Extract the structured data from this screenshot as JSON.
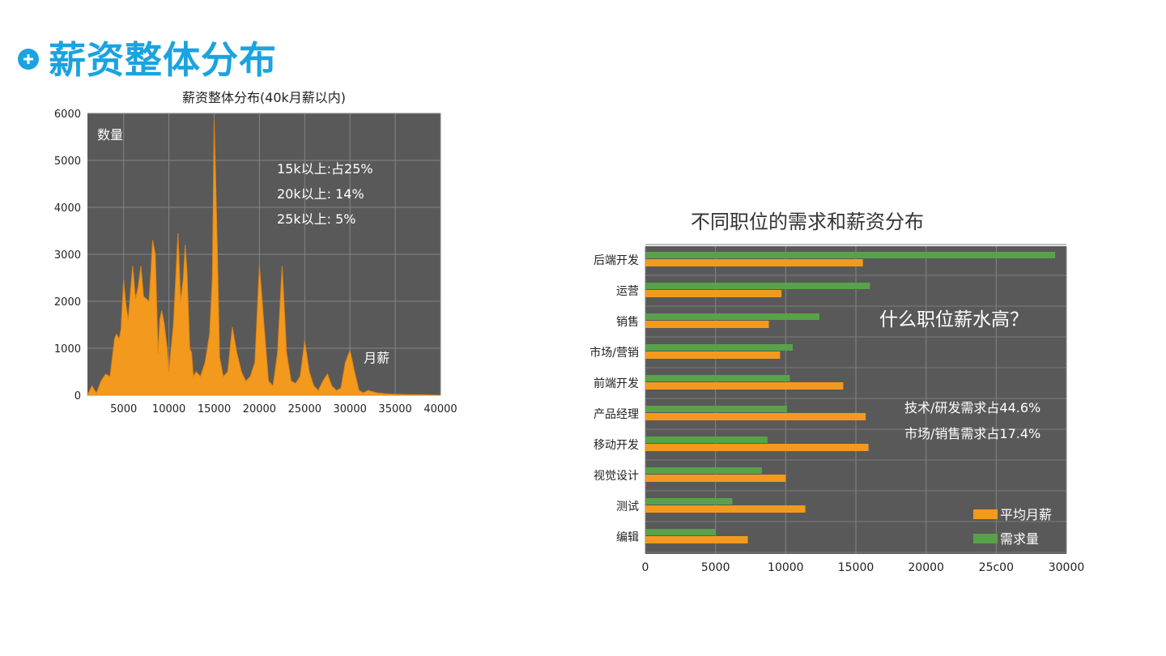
{
  "slide": {
    "title": "薪资整体分布",
    "icon": "plus-circle-icon",
    "accent_color": "#1aa3e0"
  },
  "chart_data": [
    {
      "type": "area",
      "title": "薪资整体分布(40k月薪以内)",
      "ylabel": "数量",
      "xlabel": "月薪",
      "xlim": [
        1000,
        40000
      ],
      "ylim": [
        0,
        6000
      ],
      "xticks": [
        5000,
        10000,
        15000,
        20000,
        25000,
        30000,
        35000,
        40000
      ],
      "yticks": [
        0,
        1000,
        2000,
        3000,
        4000,
        5000,
        6000
      ],
      "background": "#595959",
      "fill_color": "#f39a1e",
      "grid": true,
      "annotations": [
        "15k以上:占25%",
        "20k以上: 14%",
        "25k以上: 5%"
      ],
      "series": [
        {
          "x": [
            1000,
            1500,
            1800,
            2000,
            2500,
            3000,
            3500,
            4000,
            4200,
            4500,
            4700,
            5000,
            5200,
            5500,
            5800,
            6000,
            6300,
            6600,
            6900,
            7200,
            7500,
            7800,
            8000,
            8200,
            8500,
            8800,
            9000,
            9200,
            9500,
            9800,
            10000,
            10500,
            11000,
            11300,
            11600,
            11800,
            12000,
            12300,
            12500,
            12700,
            13000,
            13500,
            14000,
            14500,
            14800,
            15000,
            15300,
            15600,
            16000,
            16500,
            17000,
            17500,
            18000,
            18500,
            19000,
            19500,
            20000,
            20500,
            21000,
            21500,
            22000,
            22500,
            23000,
            23500,
            24000,
            24500,
            25000,
            25500,
            26000,
            26500,
            27000,
            27500,
            28000,
            28500,
            29000,
            29500,
            30000,
            30500,
            31000,
            31500,
            32000,
            33000,
            34000,
            35000,
            36000,
            37000,
            38000,
            39000,
            40000
          ],
          "values": [
            0,
            200,
            100,
            50,
            300,
            450,
            400,
            1200,
            1300,
            1200,
            1400,
            2450,
            2000,
            1600,
            2300,
            2750,
            2050,
            2300,
            2750,
            2100,
            2050,
            2000,
            2600,
            3300,
            3000,
            900,
            1600,
            1800,
            1500,
            1000,
            500,
            1500,
            3450,
            2000,
            2500,
            3200,
            2600,
            1000,
            900,
            400,
            500,
            400,
            700,
            1300,
            2500,
            5850,
            3500,
            800,
            400,
            500,
            1450,
            900,
            500,
            300,
            400,
            700,
            2750,
            1500,
            300,
            200,
            900,
            2750,
            900,
            300,
            250,
            400,
            1150,
            500,
            200,
            100,
            300,
            450,
            200,
            100,
            150,
            700,
            950,
            500,
            100,
            50,
            100,
            50,
            30,
            20,
            15,
            10,
            10,
            5,
            0
          ]
        }
      ]
    },
    {
      "type": "bar",
      "orientation": "horizontal",
      "title": "不同职位的需求和薪资分布",
      "categories": [
        "后端开发",
        "运营",
        "销售",
        "市场/营销",
        "前端开发",
        "产品经理",
        "移动开发",
        "视觉设计",
        "测试",
        "编辑"
      ],
      "xlim": [
        0,
        30000
      ],
      "xticks": [
        0,
        5000,
        10000,
        15000,
        20000,
        25000,
        30000
      ],
      "xtick_labels": [
        "0",
        "5000",
        "10000",
        "15000",
        "20000",
        "25c00",
        "30000"
      ],
      "background": "#595959",
      "grid": true,
      "annotations": {
        "question": "什么职位薪水高？",
        "notes": [
          "技术/研发需求占44.6%",
          "市场/销售需求占17.4%"
        ]
      },
      "legend_placement": "bottom-right",
      "series": [
        {
          "name": "需求量",
          "color": "#58a24a",
          "values": [
            29200,
            16000,
            12400,
            10500,
            10300,
            10100,
            8700,
            8300,
            6200,
            5000
          ]
        },
        {
          "name": "平均月薪",
          "color": "#f39a1e",
          "values": [
            15500,
            9700,
            8800,
            9600,
            14100,
            15700,
            15900,
            10000,
            11400,
            7300
          ]
        }
      ]
    }
  ]
}
